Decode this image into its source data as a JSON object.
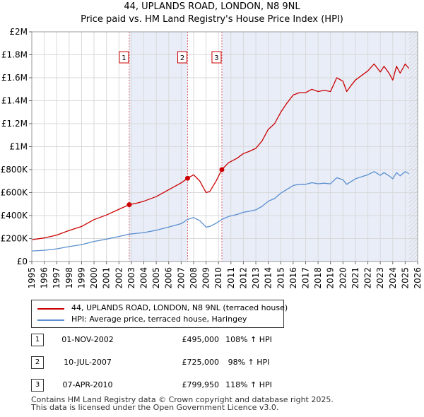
{
  "chart_data": {
    "type": "line",
    "title": "44, UPLANDS ROAD, LONDON, N8 9NL",
    "subtitle": "Price paid vs. HM Land Registry's House Price Index (HPI)",
    "xlim": [
      1995,
      2026
    ],
    "ylim": [
      0,
      2000000
    ],
    "x_ticks": [
      "1995",
      "1996",
      "1997",
      "1998",
      "1999",
      "2000",
      "2001",
      "2002",
      "2003",
      "2004",
      "2005",
      "2006",
      "2007",
      "2008",
      "2009",
      "2010",
      "2011",
      "2012",
      "2013",
      "2014",
      "2015",
      "2016",
      "2017",
      "2018",
      "2019",
      "2020",
      "2021",
      "2022",
      "2023",
      "2024",
      "2025",
      "2026"
    ],
    "y_ticks": [
      {
        "value": 0,
        "label": "£0"
      },
      {
        "value": 200000,
        "label": "£200K"
      },
      {
        "value": 400000,
        "label": "£400K"
      },
      {
        "value": 600000,
        "label": "£600K"
      },
      {
        "value": 800000,
        "label": "£800K"
      },
      {
        "value": 1000000,
        "label": "£1M"
      },
      {
        "value": 1200000,
        "label": "£1.2M"
      },
      {
        "value": 1400000,
        "label": "£1.4M"
      },
      {
        "value": 1600000,
        "label": "£1.6M"
      },
      {
        "value": 1800000,
        "label": "£1.8M"
      },
      {
        "value": 2000000,
        "label": "£2M"
      }
    ],
    "grid": true,
    "series": [
      {
        "name": "44, UPLANDS ROAD, LONDON, N8 9NL (terraced house)",
        "color": "#cc0000",
        "x": [
          1995.0,
          1996.0,
          1997.0,
          1998.0,
          1999.0,
          2000.0,
          2001.0,
          2002.0,
          2002.83,
          2003.5,
          2004.0,
          2005.0,
          2006.0,
          2007.0,
          2007.52,
          2008.0,
          2008.5,
          2009.0,
          2009.3,
          2009.8,
          2010.27,
          2010.8,
          2011.5,
          2012.0,
          2012.5,
          2013.0,
          2013.5,
          2014.0,
          2014.5,
          2015.0,
          2015.5,
          2016.0,
          2016.5,
          2017.0,
          2017.5,
          2018.0,
          2018.5,
          2019.0,
          2019.5,
          2020.0,
          2020.3,
          2020.7,
          2021.0,
          2021.5,
          2022.0,
          2022.5,
          2023.0,
          2023.3,
          2023.7,
          2024.0,
          2024.3,
          2024.6,
          2025.0,
          2025.3
        ],
        "y": [
          190000,
          205000,
          230000,
          270000,
          305000,
          365000,
          405000,
          455000,
          495000,
          510000,
          525000,
          565000,
          625000,
          685000,
          725000,
          755000,
          700000,
          600000,
          610000,
          700000,
          799950,
          860000,
          900000,
          940000,
          960000,
          985000,
          1050000,
          1150000,
          1200000,
          1300000,
          1380000,
          1450000,
          1470000,
          1470000,
          1500000,
          1480000,
          1490000,
          1480000,
          1600000,
          1570000,
          1480000,
          1540000,
          1580000,
          1620000,
          1660000,
          1720000,
          1650000,
          1700000,
          1640000,
          1580000,
          1700000,
          1640000,
          1720000,
          1680000
        ]
      },
      {
        "name": "HPI: Average price, terraced house, Haringey",
        "color": "#5b8fcf",
        "x": [
          1995.0,
          1996.0,
          1997.0,
          1998.0,
          1999.0,
          2000.0,
          2001.0,
          2002.0,
          2002.83,
          2003.5,
          2004.0,
          2005.0,
          2006.0,
          2007.0,
          2007.52,
          2008.0,
          2008.5,
          2009.0,
          2009.3,
          2009.8,
          2010.27,
          2010.8,
          2011.5,
          2012.0,
          2012.5,
          2013.0,
          2013.5,
          2014.0,
          2014.5,
          2015.0,
          2015.5,
          2016.0,
          2016.5,
          2017.0,
          2017.5,
          2018.0,
          2018.5,
          2019.0,
          2019.5,
          2020.0,
          2020.3,
          2020.7,
          2021.0,
          2021.5,
          2022.0,
          2022.5,
          2023.0,
          2023.3,
          2023.7,
          2024.0,
          2024.3,
          2024.6,
          2025.0,
          2025.3
        ],
        "y": [
          92000,
          98000,
          110000,
          130000,
          147000,
          175000,
          195000,
          218000,
          238000,
          246000,
          252000,
          272000,
          300000,
          330000,
          366000,
          383000,
          355000,
          300000,
          305000,
          333000,
          366000,
          392000,
          410000,
          428000,
          438000,
          450000,
          480000,
          525000,
          548000,
          595000,
          628000,
          662000,
          672000,
          672000,
          686000,
          677000,
          682000,
          676000,
          730000,
          712000,
          672000,
          700000,
          720000,
          738000,
          756000,
          783000,
          750000,
          774000,
          746000,
          720000,
          774000,
          746000,
          783000,
          765000
        ]
      }
    ],
    "annotations": [
      {
        "label": "1",
        "x": 2002.83
      },
      {
        "label": "2",
        "x": 2007.52
      },
      {
        "label": "3",
        "x": 2010.27
      }
    ],
    "sale_points": [
      {
        "x": 2002.83,
        "y": 495000
      },
      {
        "x": 2007.52,
        "y": 725000
      },
      {
        "x": 2010.27,
        "y": 799950
      }
    ],
    "legend_position": "below"
  },
  "legend": [
    {
      "label": "44, UPLANDS ROAD, LONDON, N8 9NL (terraced house)",
      "color": "#cc0000"
    },
    {
      "label": "HPI: Average price, terraced house, Haringey",
      "color": "#5b8fcf"
    }
  ],
  "sales": [
    {
      "num": "1",
      "date": "01-NOV-2002",
      "price": "£495,000",
      "pct": "108% ↑ HPI"
    },
    {
      "num": "2",
      "date": "10-JUL-2007",
      "price": "£725,000",
      "pct": "98% ↑ HPI"
    },
    {
      "num": "3",
      "date": "07-APR-2010",
      "price": "£799,950",
      "pct": "118% ↑ HPI"
    }
  ],
  "footer": {
    "line1": "Contains HM Land Registry data © Crown copyright and database right 2025.",
    "line2": "This data is licensed under the Open Government Licence v3.0."
  }
}
